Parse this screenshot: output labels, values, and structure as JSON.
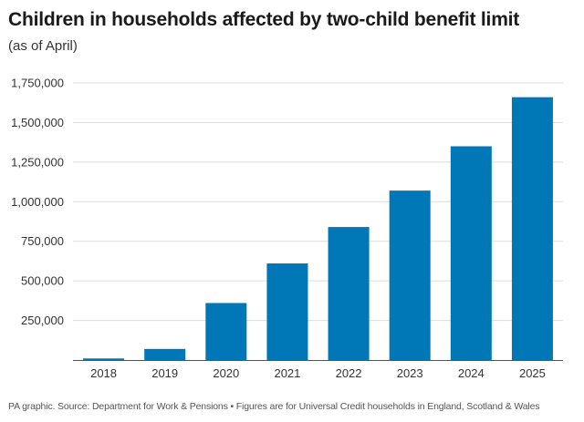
{
  "chart_data": {
    "type": "bar",
    "title": "Children in households affected by two-child benefit limit",
    "subtitle": "(as of April)",
    "categories": [
      "2018",
      "2019",
      "2020",
      "2021",
      "2022",
      "2023",
      "2024",
      "2025"
    ],
    "values": [
      10000,
      70000,
      360000,
      610000,
      840000,
      1070000,
      1350000,
      1660000
    ],
    "ylim": [
      0,
      1750000
    ],
    "yticks": [
      250000,
      500000,
      750000,
      1000000,
      1250000,
      1500000,
      1750000
    ],
    "ytick_labels": [
      "250,000",
      "500,000",
      "750,000",
      "1,000,000",
      "1,250,000",
      "1,500,000",
      "1,750,000"
    ],
    "xlabel": "",
    "ylabel": "",
    "grid": true,
    "bar_color": "#0077b6",
    "grid_color": "#dddddd",
    "baseline_color": "#555555"
  },
  "footnote": "PA graphic. Source: Department for Work & Pensions • Figures are for Universal Credit households in England, Scotland & Wales"
}
